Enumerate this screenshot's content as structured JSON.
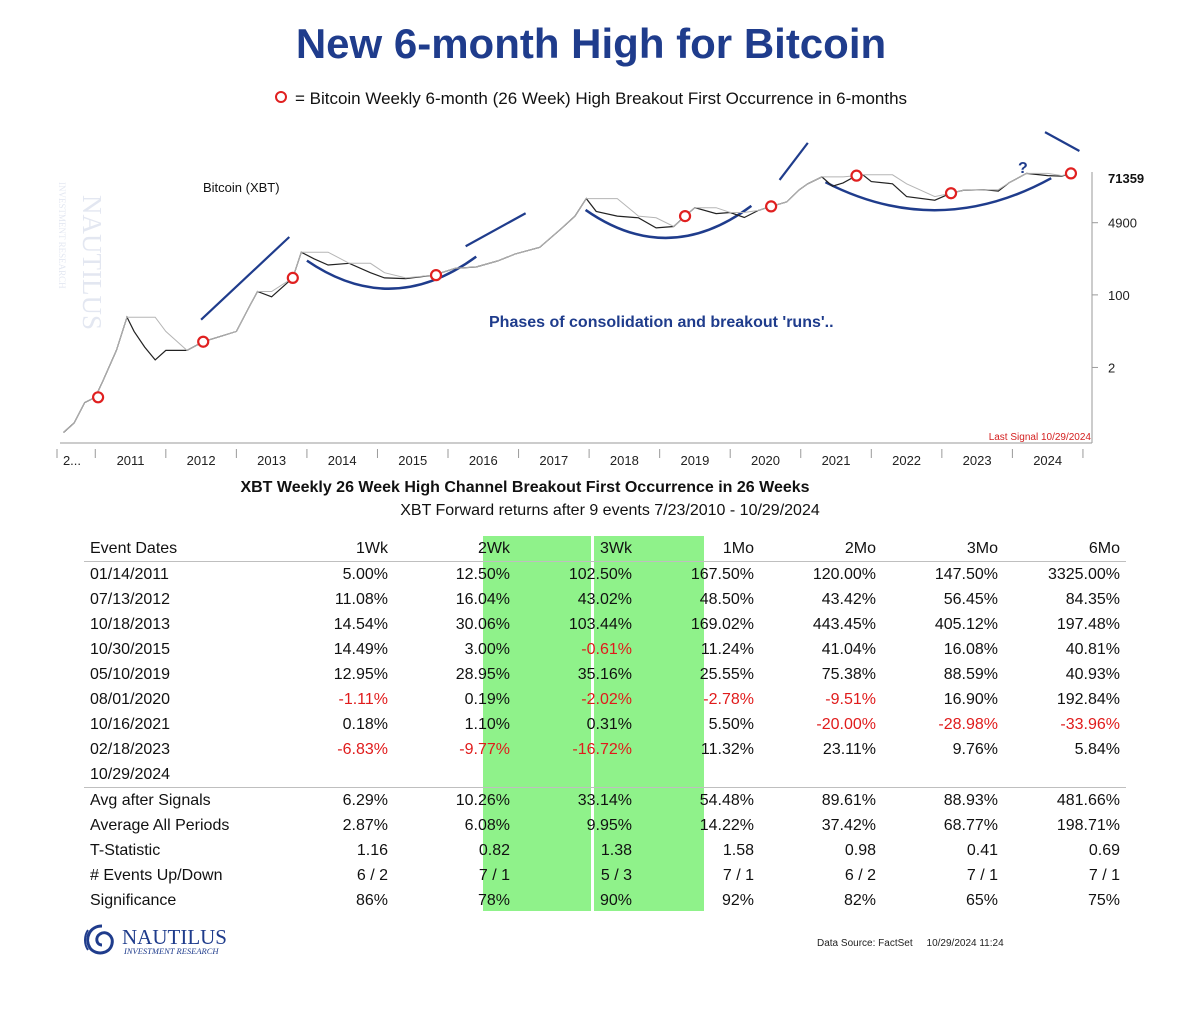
{
  "title": "New 6-month High for Bitcoin",
  "legend_text": "= Bitcoin Weekly 6-month (26 Week) High Breakout First Occurrence in 6-months",
  "chart_data": {
    "type": "line",
    "series_label": "Bitcoin (XBT)",
    "last_value_label": "71359",
    "y_scale": "log",
    "y_ticks": [
      "4900",
      "100",
      "2"
    ],
    "y_tick_values": [
      4900,
      100,
      2
    ],
    "x_ticks": [
      "2...",
      "2011",
      "2012",
      "2013",
      "2014",
      "2015",
      "2016",
      "2017",
      "2018",
      "2019",
      "2020",
      "2021",
      "2022",
      "2023",
      "2024"
    ],
    "annotation": "Phases of consolidation and breakout 'runs'..",
    "question_mark": "?",
    "last_signal": "Last Signal 10/29/2024",
    "price_points": [
      [
        2010.55,
        0.06
      ],
      [
        2010.7,
        0.1
      ],
      [
        2010.85,
        0.3
      ],
      [
        2011.0,
        0.4
      ],
      [
        2011.1,
        0.9
      ],
      [
        2011.3,
        5
      ],
      [
        2011.45,
        30
      ],
      [
        2011.55,
        14
      ],
      [
        2011.7,
        6
      ],
      [
        2011.85,
        3
      ],
      [
        2012.0,
        5
      ],
      [
        2012.3,
        5
      ],
      [
        2012.53,
        8
      ],
      [
        2012.8,
        11
      ],
      [
        2013.0,
        14
      ],
      [
        2013.2,
        60
      ],
      [
        2013.3,
        120
      ],
      [
        2013.5,
        90
      ],
      [
        2013.8,
        250
      ],
      [
        2013.92,
        1000
      ],
      [
        2014.1,
        700
      ],
      [
        2014.3,
        500
      ],
      [
        2014.6,
        550
      ],
      [
        2014.9,
        330
      ],
      [
        2015.1,
        250
      ],
      [
        2015.4,
        240
      ],
      [
        2015.8,
        290
      ],
      [
        2016.1,
        420
      ],
      [
        2016.4,
        450
      ],
      [
        2016.7,
        620
      ],
      [
        2016.95,
        900
      ],
      [
        2017.3,
        1300
      ],
      [
        2017.6,
        3500
      ],
      [
        2017.8,
        7000
      ],
      [
        2017.96,
        18000
      ],
      [
        2018.1,
        9000
      ],
      [
        2018.4,
        7000
      ],
      [
        2018.7,
        6400
      ],
      [
        2018.95,
        3700
      ],
      [
        2019.2,
        4000
      ],
      [
        2019.36,
        7000
      ],
      [
        2019.5,
        11000
      ],
      [
        2019.8,
        8000
      ],
      [
        2020.0,
        8500
      ],
      [
        2020.2,
        6500
      ],
      [
        2020.4,
        9500
      ],
      [
        2020.58,
        11800
      ],
      [
        2020.8,
        15000
      ],
      [
        2020.98,
        29000
      ],
      [
        2021.1,
        40000
      ],
      [
        2021.3,
        58000
      ],
      [
        2021.45,
        35000
      ],
      [
        2021.6,
        42000
      ],
      [
        2021.79,
        62000
      ],
      [
        2021.88,
        65000
      ],
      [
        2022.0,
        45000
      ],
      [
        2022.3,
        40000
      ],
      [
        2022.5,
        20000
      ],
      [
        2022.9,
        16500
      ],
      [
        2023.13,
        24000
      ],
      [
        2023.3,
        28000
      ],
      [
        2023.6,
        29000
      ],
      [
        2023.8,
        27000
      ],
      [
        2023.95,
        42000
      ],
      [
        2024.2,
        70000
      ],
      [
        2024.5,
        62000
      ],
      [
        2024.7,
        60000
      ],
      [
        2024.83,
        70000
      ],
      [
        2024.9,
        71359
      ]
    ],
    "signal_dates": [
      2011.04,
      2012.53,
      2013.8,
      2015.83,
      2019.36,
      2020.58,
      2021.79,
      2023.13,
      2024.83
    ]
  },
  "table": {
    "title": "XBT Weekly 26 Week High Channel Breakout First Occurrence in 26 Weeks",
    "subtitle": "XBT Forward returns after 9 events 7/23/2010 - 10/29/2024",
    "columns": [
      "Event Dates",
      "1Wk",
      "2Wk",
      "3Wk",
      "1Mo",
      "2Mo",
      "3Mo",
      "6Mo"
    ],
    "highlight_columns": [
      3,
      4
    ],
    "highlight_color": "#8ff28a",
    "negative_color": "#e01b1b",
    "events": [
      [
        "01/14/2011",
        "5.00%",
        "12.50%",
        "102.50%",
        "167.50%",
        "120.00%",
        "147.50%",
        "3325.00%"
      ],
      [
        "07/13/2012",
        "11.08%",
        "16.04%",
        "43.02%",
        "48.50%",
        "43.42%",
        "56.45%",
        "84.35%"
      ],
      [
        "10/18/2013",
        "14.54%",
        "30.06%",
        "103.44%",
        "169.02%",
        "443.45%",
        "405.12%",
        "197.48%"
      ],
      [
        "10/30/2015",
        "14.49%",
        "3.00%",
        "-0.61%",
        "11.24%",
        "41.04%",
        "16.08%",
        "40.81%"
      ],
      [
        "05/10/2019",
        "12.95%",
        "28.95%",
        "35.16%",
        "25.55%",
        "75.38%",
        "88.59%",
        "40.93%"
      ],
      [
        "08/01/2020",
        "-1.11%",
        "0.19%",
        "-2.02%",
        "-2.78%",
        "-9.51%",
        "16.90%",
        "192.84%"
      ],
      [
        "10/16/2021",
        "0.18%",
        "1.10%",
        "0.31%",
        "5.50%",
        "-20.00%",
        "-28.98%",
        "-33.96%"
      ],
      [
        "02/18/2023",
        "-6.83%",
        "-9.77%",
        "-16.72%",
        "11.32%",
        "23.11%",
        "9.76%",
        "5.84%"
      ],
      [
        "10/29/2024",
        "",
        "",
        "",
        "",
        "",
        "",
        ""
      ]
    ],
    "summary": [
      [
        "Avg after Signals",
        "6.29%",
        "10.26%",
        "33.14%",
        "54.48%",
        "89.61%",
        "88.93%",
        "481.66%"
      ],
      [
        "Average All Periods",
        "2.87%",
        "6.08%",
        "9.95%",
        "14.22%",
        "37.42%",
        "68.77%",
        "198.71%"
      ],
      [
        "T-Statistic",
        "1.16",
        "0.82",
        "1.38",
        "1.58",
        "0.98",
        "0.41",
        "0.69"
      ],
      [
        "# Events Up/Down",
        "6 / 2",
        "7 / 1",
        "5 / 3",
        "7 / 1",
        "6 / 2",
        "7 / 1",
        "7 / 1"
      ],
      [
        "Significance",
        "86%",
        "78%",
        "90%",
        "92%",
        "82%",
        "65%",
        "75%"
      ]
    ]
  },
  "logo": {
    "name": "NAUTILUS",
    "tagline": "INVESTMENT RESEARCH",
    "icon": "nautilus-logo-icon"
  },
  "watermark": {
    "name": "NAUTILUS",
    "tagline": "INVESTMENT RESEARCH"
  },
  "footer": {
    "source": "Data Source: FactSet",
    "timestamp": "10/29/2024 11:24"
  }
}
